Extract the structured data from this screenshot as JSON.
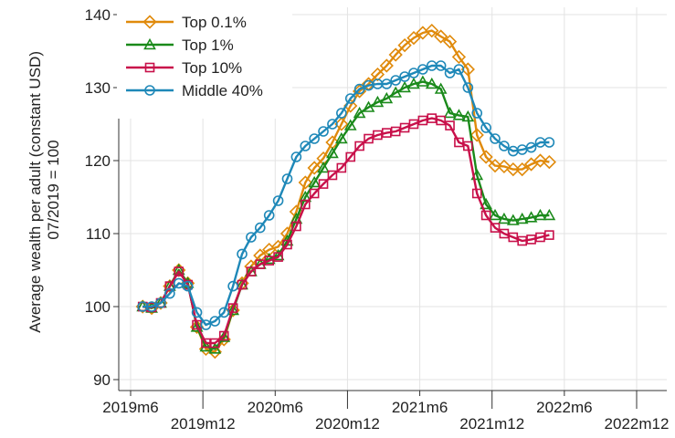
{
  "chart_data": {
    "type": "line",
    "ylabel_lines": [
      "Average wealth per adult (constant USD)",
      "07/2019 = 100"
    ],
    "xlabel": "",
    "x_start": "2019-07",
    "x_ticks": [
      {
        "label": "2019m6",
        "month": "2019-06",
        "row": 1
      },
      {
        "label": "2019m12",
        "month": "2019-12",
        "row": 2
      },
      {
        "label": "2020m6",
        "month": "2020-06",
        "row": 1
      },
      {
        "label": "2020m12",
        "month": "2020-12",
        "row": 2
      },
      {
        "label": "2021m6",
        "month": "2021-06",
        "row": 1
      },
      {
        "label": "2021m12",
        "month": "2021-12",
        "row": 2
      },
      {
        "label": "2022m6",
        "month": "2022-06",
        "row": 1
      },
      {
        "label": "2022m12",
        "month": "2022-12",
        "row": 2
      }
    ],
    "xlim": [
      "2019-06",
      "2022-12"
    ],
    "y_ticks": [
      90,
      100,
      110,
      120,
      130,
      140
    ],
    "ylim": [
      88.5,
      141
    ],
    "grid": true,
    "legend_position": "top-left",
    "series": [
      {
        "name": "Top 0.1%",
        "color": "#E08A0B",
        "marker": "diamond",
        "values": [
          100,
          99.8,
          100.5,
          102.8,
          105,
          103.2,
          97.2,
          94.2,
          93.8,
          95.5,
          99.5,
          103.2,
          105.5,
          107,
          107.8,
          108.2,
          110,
          113,
          117,
          119,
          120.3,
          122.5,
          125,
          127.5,
          129.5,
          130.5,
          131.8,
          133,
          134.5,
          135.8,
          136.8,
          137.5,
          137.8,
          137,
          136.3,
          134.2,
          132.5,
          123.5,
          120.5,
          119.3,
          119.2,
          118.8,
          118.8,
          119.5,
          120,
          119.8
        ]
      },
      {
        "name": "Top 1%",
        "color": "#1A8A1A",
        "marker": "triangle",
        "values": [
          100,
          99.8,
          100.5,
          102.8,
          105,
          103.2,
          97.2,
          94.5,
          94.2,
          95.8,
          99.5,
          103,
          104.8,
          105.8,
          106.5,
          107,
          109,
          112,
          115,
          117,
          119,
          121,
          123,
          124.8,
          126.5,
          127.3,
          128,
          128.5,
          129.3,
          130,
          130.5,
          130.8,
          130.5,
          129.8,
          126.5,
          126.2,
          126,
          118,
          114,
          112.5,
          112,
          111.8,
          112,
          112.2,
          112.5,
          112.5
        ]
      },
      {
        "name": "Top 10%",
        "color": "#C8104A",
        "marker": "square",
        "values": [
          100,
          99.9,
          100.5,
          102.8,
          104.8,
          103,
          97.5,
          95,
          95,
          96,
          99.8,
          103,
          104.8,
          105.8,
          106.3,
          106.8,
          108.5,
          111,
          114,
          115.5,
          116.8,
          118,
          119,
          120.5,
          122,
          123,
          123.5,
          123.8,
          124,
          124.5,
          125,
          125.5,
          125.8,
          125.5,
          124.8,
          122.5,
          122,
          115.5,
          112.5,
          110.8,
          110,
          109.5,
          109,
          109.2,
          109.5,
          109.8
        ]
      },
      {
        "name": "Middle 40%",
        "color": "#1E88B8",
        "marker": "circle",
        "values": [
          100,
          100,
          100.5,
          101.8,
          103.2,
          102.8,
          99.2,
          97.5,
          98,
          99.2,
          102.8,
          107.2,
          109.5,
          110.8,
          112.5,
          114.5,
          117.5,
          120.5,
          122,
          123,
          124,
          125,
          126.5,
          128.5,
          129.8,
          130.3,
          130.5,
          130.5,
          131,
          131.5,
          132,
          132.5,
          133,
          133,
          132,
          132.5,
          130,
          126.5,
          124.5,
          123,
          122,
          121.3,
          121.5,
          121.8,
          122.5,
          122.5
        ]
      }
    ]
  }
}
